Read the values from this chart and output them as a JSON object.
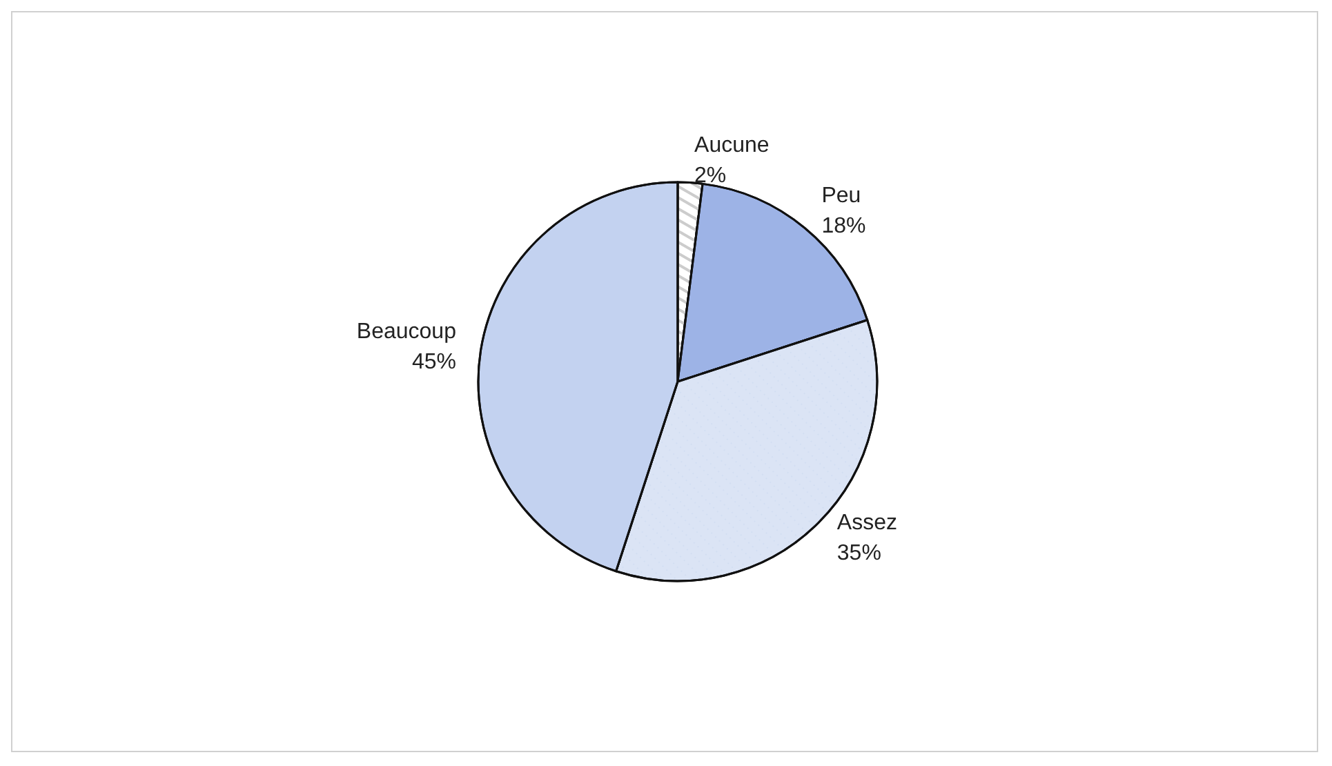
{
  "chart_data": {
    "type": "pie",
    "categories": [
      "Aucune",
      "Peu",
      "Assez",
      "Beaucoup"
    ],
    "values": [
      2,
      18,
      35,
      45
    ],
    "value_labels": [
      "2%",
      "18%",
      "35%",
      "45%"
    ],
    "colors": [
      "#ffffff",
      "#9db3e6",
      "#dbe4f5",
      "#c3d2f0"
    ],
    "legend": false
  }
}
